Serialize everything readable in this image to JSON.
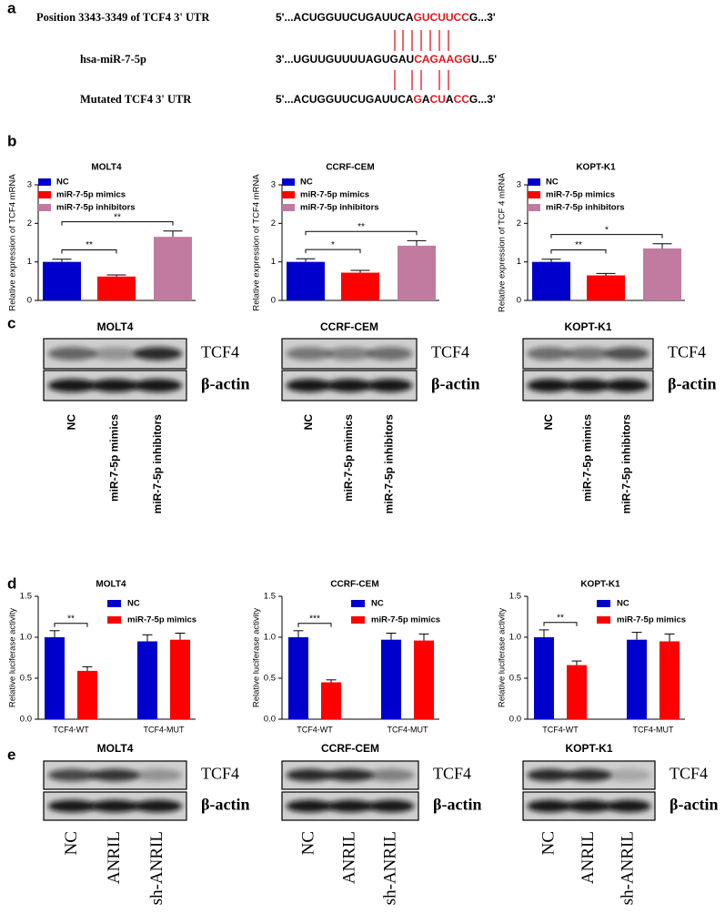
{
  "panel_labels": [
    "a",
    "b",
    "c",
    "d",
    "e"
  ],
  "sequences": [
    {
      "label": "Position 3343-3349 of TCF4 3' UTR",
      "segments": [
        {
          "text": "5'...ACUGGUUCUGAUUCA",
          "color": "#000000"
        },
        {
          "text": "GUCUUCC",
          "color": "#e8141b"
        },
        {
          "text": "G...3'",
          "color": "#000000"
        }
      ]
    },
    {
      "label": "hsa-miR-7-5p",
      "segments": [
        {
          "text": "3'...UGUUGUUUUAGUGAU",
          "color": "#000000"
        },
        {
          "text": "CAGAAGG",
          "color": "#e8141b"
        },
        {
          "text": "U...5'",
          "color": "#000000"
        }
      ]
    },
    {
      "label": "Mutated TCF4 3' UTR",
      "segments": [
        {
          "text": "5'...ACUGGUUCUGAUUCA",
          "color": "#000000"
        },
        {
          "text": "G",
          "color": "#e8141b"
        },
        {
          "text": "A",
          "color": "#000000"
        },
        {
          "text": "CU",
          "color": "#e8141b"
        },
        {
          "text": "A",
          "color": "#000000"
        },
        {
          "text": "CC",
          "color": "#e8141b"
        },
        {
          "text": "G...3'",
          "color": "#000000"
        }
      ]
    }
  ],
  "chart_data": [
    {
      "type": "bar",
      "title": "MOLT4",
      "y_label": "Relative expression of TCF4 mRNA",
      "ylim": [
        0,
        3
      ],
      "yticks": [
        0,
        1,
        2,
        3
      ],
      "series": [
        {
          "name": "NC",
          "color": "#0000cc",
          "values": [
            1.0
          ],
          "errors": [
            0.07
          ]
        },
        {
          "name": "miR-7-5p mimics",
          "color": "#ff0000",
          "values": [
            0.62
          ],
          "errors": [
            0.04
          ]
        },
        {
          "name": "miR-7-5p inhibitors",
          "color": "#c27ba0",
          "values": [
            1.65
          ],
          "errors": [
            0.15
          ]
        }
      ],
      "significance": [
        {
          "label": "**",
          "pair": [
            0,
            1
          ]
        },
        {
          "label": "**",
          "pair": [
            0,
            2
          ]
        }
      ]
    },
    {
      "type": "bar",
      "title": "CCRF-CEM",
      "y_label": "Relative expression of TCF4 mRNA",
      "ylim": [
        0,
        3
      ],
      "yticks": [
        0,
        1,
        2,
        3
      ],
      "series": [
        {
          "name": "NC",
          "color": "#0000cc",
          "values": [
            1.0
          ],
          "errors": [
            0.08
          ]
        },
        {
          "name": "miR-7-5p mimics",
          "color": "#ff0000",
          "values": [
            0.72
          ],
          "errors": [
            0.06
          ]
        },
        {
          "name": "miR-7-5p inhibitors",
          "color": "#c27ba0",
          "values": [
            1.42
          ],
          "errors": [
            0.13
          ]
        }
      ],
      "significance": [
        {
          "label": "*",
          "pair": [
            0,
            1
          ]
        },
        {
          "label": "**",
          "pair": [
            0,
            2
          ]
        }
      ]
    },
    {
      "type": "bar",
      "title": "KOPT-K1",
      "y_label": "Relative expression of TCF 4 mRNA",
      "ylim": [
        0,
        3
      ],
      "yticks": [
        0,
        1,
        2,
        3
      ],
      "series": [
        {
          "name": "NC",
          "color": "#0000cc",
          "values": [
            1.0
          ],
          "errors": [
            0.07
          ]
        },
        {
          "name": "miR-7-5p mimics",
          "color": "#ff0000",
          "values": [
            0.65
          ],
          "errors": [
            0.05
          ]
        },
        {
          "name": "miR-7-5p inhibitors",
          "color": "#c27ba0",
          "values": [
            1.35
          ],
          "errors": [
            0.12
          ]
        }
      ],
      "significance": [
        {
          "label": "**",
          "pair": [
            0,
            1
          ]
        },
        {
          "label": "*",
          "pair": [
            0,
            2
          ]
        }
      ]
    },
    {
      "type": "bar",
      "title": "MOLT4",
      "y_label": "Relative luciferase activity",
      "categories": [
        "TCF4-WT",
        "TCF4-MUT"
      ],
      "ylim": [
        0,
        1.5
      ],
      "yticks": [
        {
          "value": 0,
          "label": "0.0"
        },
        {
          "value": 0.5,
          "label": "0.5"
        },
        {
          "value": 1,
          "label": "1.0"
        },
        {
          "value": 1.5,
          "label": "1.5"
        }
      ],
      "series": [
        {
          "name": "NC",
          "color": "#0000cc",
          "values": [
            1.0,
            0.95
          ],
          "errors": [
            0.08,
            0.08
          ]
        },
        {
          "name": "miR-7-5p mimics",
          "color": "#ff0000",
          "values": [
            0.59,
            0.97
          ],
          "errors": [
            0.05,
            0.08
          ]
        }
      ],
      "significance": [
        {
          "label": "**",
          "category": 0,
          "pair": [
            0,
            1
          ]
        }
      ]
    },
    {
      "type": "bar",
      "title": "CCRF-CEM",
      "y_label": "Relative luciferase activity",
      "categories": [
        "TCF4-WT",
        "TCF4-MUT"
      ],
      "ylim": [
        0,
        1.5
      ],
      "yticks": [
        {
          "value": 0,
          "label": "0.0"
        },
        {
          "value": 0.5,
          "label": "0.5"
        },
        {
          "value": 1,
          "label": "1.0"
        },
        {
          "value": 1.5,
          "label": "1.5"
        }
      ],
      "series": [
        {
          "name": "NC",
          "color": "#0000cc",
          "values": [
            1.0,
            0.97
          ],
          "errors": [
            0.08,
            0.08
          ]
        },
        {
          "name": "miR-7-5p mimics",
          "color": "#ff0000",
          "values": [
            0.45,
            0.96
          ],
          "errors": [
            0.03,
            0.08
          ]
        }
      ],
      "significance": [
        {
          "label": "***",
          "category": 0,
          "pair": [
            0,
            1
          ]
        }
      ]
    },
    {
      "type": "bar",
      "title": "KOPT-K1",
      "y_label": "Relative luciferase activity",
      "categories": [
        "TCF4-WT",
        "TCF4-MUT"
      ],
      "ylim": [
        0,
        1.5
      ],
      "yticks": [
        {
          "value": 0,
          "label": "0.0"
        },
        {
          "value": 0.5,
          "label": "0.5"
        },
        {
          "value": 1,
          "label": "1.0"
        },
        {
          "value": 1.5,
          "label": "1.5"
        }
      ],
      "series": [
        {
          "name": "NC",
          "color": "#0000cc",
          "values": [
            1.0,
            0.97
          ],
          "errors": [
            0.09,
            0.09
          ]
        },
        {
          "name": "miR-7-5p mimics",
          "color": "#ff0000",
          "values": [
            0.66,
            0.95
          ],
          "errors": [
            0.05,
            0.09
          ]
        }
      ],
      "significance": [
        {
          "label": "**",
          "category": 0,
          "pair": [
            0,
            1
          ]
        }
      ]
    }
  ],
  "blots_c": [
    {
      "title": "MOLT4",
      "bands": [
        "TCF4",
        "β-actin"
      ],
      "lanes": [
        "NC",
        "miR-7-5p mimics",
        "miR-7-5p inhibitors"
      ]
    },
    {
      "title": "CCRF-CEM",
      "bands": [
        "TCF4",
        "β-actin"
      ],
      "lanes": [
        "NC",
        "miR-7-5p mimics",
        "miR-7-5p inhibitors"
      ]
    },
    {
      "title": "KOPT-K1",
      "bands": [
        "TCF4",
        "β-actin"
      ],
      "lanes": [
        "NC",
        "miR-7-5p mimics",
        "miR-7-5p inhibitors"
      ]
    }
  ],
  "blots_e": [
    {
      "title": "MOLT4",
      "bands": [
        "TCF4",
        "β-actin"
      ],
      "lanes": [
        "NC",
        "ANRIL",
        "sh-ANRIL"
      ]
    },
    {
      "title": "CCRF-CEM",
      "bands": [
        "TCF4",
        "β-actin"
      ],
      "lanes": [
        "NC",
        "ANRIL",
        "sh-ANRIL"
      ]
    },
    {
      "title": "KOPT-K1",
      "bands": [
        "TCF4",
        "β-actin"
      ],
      "lanes": [
        "NC",
        "ANRIL",
        "sh-ANRIL"
      ]
    }
  ]
}
